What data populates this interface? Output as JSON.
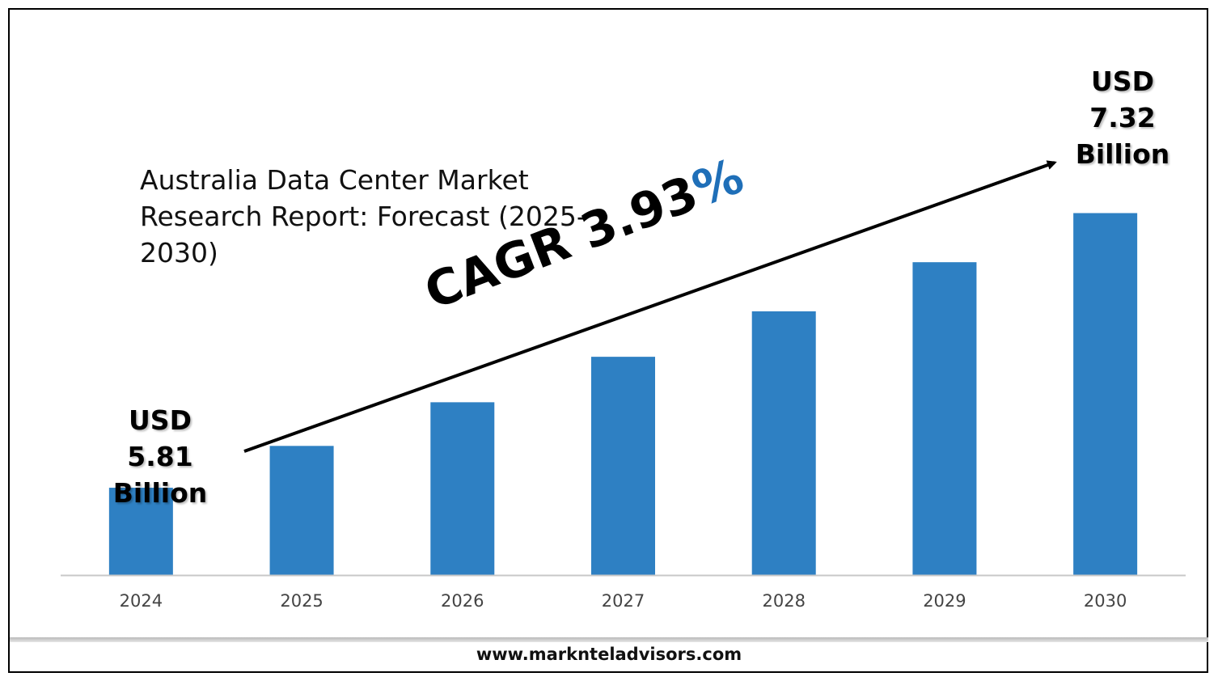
{
  "title": "Australia Data Center Market Research Report: Forecast (2025-2030)",
  "start_label": {
    "line1": "USD",
    "line2": "5.81",
    "line3": "Billion"
  },
  "end_label": {
    "line1": "USD",
    "line2": "7.32",
    "line3": "Billion"
  },
  "cagr": {
    "text": "CAGR 3.93",
    "percent": "%"
  },
  "footer": "www.marknteladvisors.com",
  "colors": {
    "bar": "#2e80c3",
    "accent": "#1f6fb8",
    "axis": "#c8c8c8",
    "tick_text": "#444444"
  },
  "chart_data": {
    "type": "bar",
    "categories": [
      "2024",
      "2025",
      "2026",
      "2027",
      "2028",
      "2029",
      "2030"
    ],
    "values": [
      5.81,
      6.04,
      6.28,
      6.53,
      6.78,
      7.05,
      7.32
    ],
    "xlabel": "",
    "ylabel": "",
    "ylim": [
      5.33,
      7.62
    ],
    "grid": false,
    "legend": "none"
  }
}
